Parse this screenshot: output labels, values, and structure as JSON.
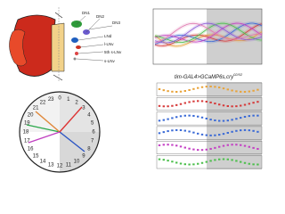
{
  "brain": {
    "labels": [
      "DN1",
      "DN2",
      "DN3",
      "LNd",
      "l-LNv",
      "5th s-LNv",
      "s-LNv"
    ]
  },
  "clock": {
    "labels": [
      "0",
      "1",
      "2",
      "3",
      "4",
      "5",
      "6",
      "7",
      "8",
      "9",
      "10",
      "11",
      "12",
      "13",
      "14",
      "15",
      "16",
      "17",
      "18",
      "19",
      "20",
      "21",
      "22",
      "23"
    ]
  },
  "calcium": {
    "title": "tim-GAL4>GCaMP6s,cry",
    "title_sup": "02/02"
  }
}
